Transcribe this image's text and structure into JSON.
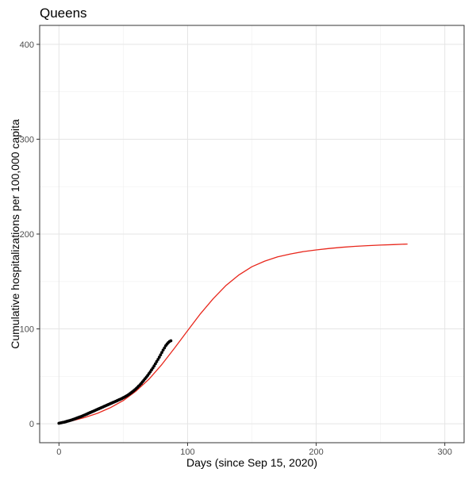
{
  "chart_data": {
    "type": "scatter",
    "title": "Queens",
    "xlabel": "Days (since Sep 15, 2020)",
    "ylabel": "Cumulative hospitalizations per 100,000 capita",
    "xlim": [
      -15,
      315
    ],
    "ylim": [
      -20,
      420
    ],
    "x_ticks": [
      0,
      100,
      200,
      300
    ],
    "y_ticks": [
      0,
      100,
      200,
      300,
      400
    ],
    "x_tick_labels": [
      "0",
      "100",
      "200",
      "300"
    ],
    "y_tick_labels": [
      "0",
      "100",
      "200",
      "300",
      "400"
    ],
    "grid": true,
    "legend": "none",
    "series": [
      {
        "kind": "points",
        "color": "#000000",
        "x": [
          0,
          1,
          2,
          3,
          4,
          5,
          6,
          7,
          8,
          9,
          10,
          11,
          12,
          13,
          14,
          15,
          16,
          17,
          18,
          19,
          20,
          21,
          22,
          23,
          24,
          25,
          26,
          27,
          28,
          29,
          30,
          31,
          32,
          33,
          34,
          35,
          36,
          37,
          38,
          39,
          40,
          41,
          42,
          43,
          44,
          45,
          46,
          47,
          48,
          49,
          50,
          51,
          52,
          53,
          54,
          55,
          56,
          57,
          58,
          59,
          60,
          61,
          62,
          63,
          64,
          65,
          66,
          67,
          68,
          69,
          70,
          71,
          72,
          73,
          74,
          75,
          76,
          77,
          78,
          79,
          80,
          81,
          82,
          83,
          84,
          85,
          86,
          87
        ],
        "y": [
          0.5,
          0.8,
          1.1,
          1.4,
          1.7,
          2.0,
          2.4,
          2.8,
          3.2,
          3.6,
          4.0,
          4.5,
          5.0,
          5.5,
          6.0,
          6.5,
          7.0,
          7.5,
          8.0,
          8.6,
          9.2,
          9.8,
          10.4,
          11.0,
          11.6,
          12.2,
          12.8,
          13.4,
          14.0,
          14.6,
          15.2,
          15.8,
          16.4,
          17.0,
          17.6,
          18.2,
          18.8,
          19.4,
          20.0,
          20.6,
          21.2,
          21.8,
          22.4,
          23.0,
          23.6,
          24.2,
          24.8,
          25.4,
          26.0,
          26.7,
          27.4,
          28.1,
          28.9,
          29.7,
          30.6,
          31.5,
          32.5,
          33.5,
          34.6,
          35.8,
          37.0,
          38.3,
          39.7,
          41.1,
          42.6,
          44.2,
          45.8,
          47.5,
          49.2,
          51.0,
          52.9,
          54.8,
          56.8,
          58.8,
          61.0,
          63.2,
          65.5,
          67.8,
          70.2,
          72.6,
          75.1,
          77.6,
          80.0,
          82.2,
          84.0,
          85.5,
          86.7,
          87.5
        ]
      },
      {
        "kind": "line",
        "color": "#e8261b",
        "x": [
          0,
          10,
          20,
          30,
          40,
          50,
          60,
          70,
          80,
          90,
          100,
          110,
          120,
          130,
          140,
          150,
          160,
          170,
          180,
          190,
          200,
          210,
          220,
          230,
          240,
          250,
          260,
          271
        ],
        "y": [
          0.0,
          3.0,
          6.5,
          11.0,
          17.0,
          24.5,
          34.5,
          47.0,
          62.5,
          80.0,
          98.0,
          116.0,
          132.0,
          146.0,
          157.0,
          165.5,
          171.5,
          176.0,
          179.0,
          181.5,
          183.3,
          184.8,
          186.0,
          187.0,
          187.8,
          188.4,
          188.9,
          189.5
        ]
      }
    ]
  }
}
